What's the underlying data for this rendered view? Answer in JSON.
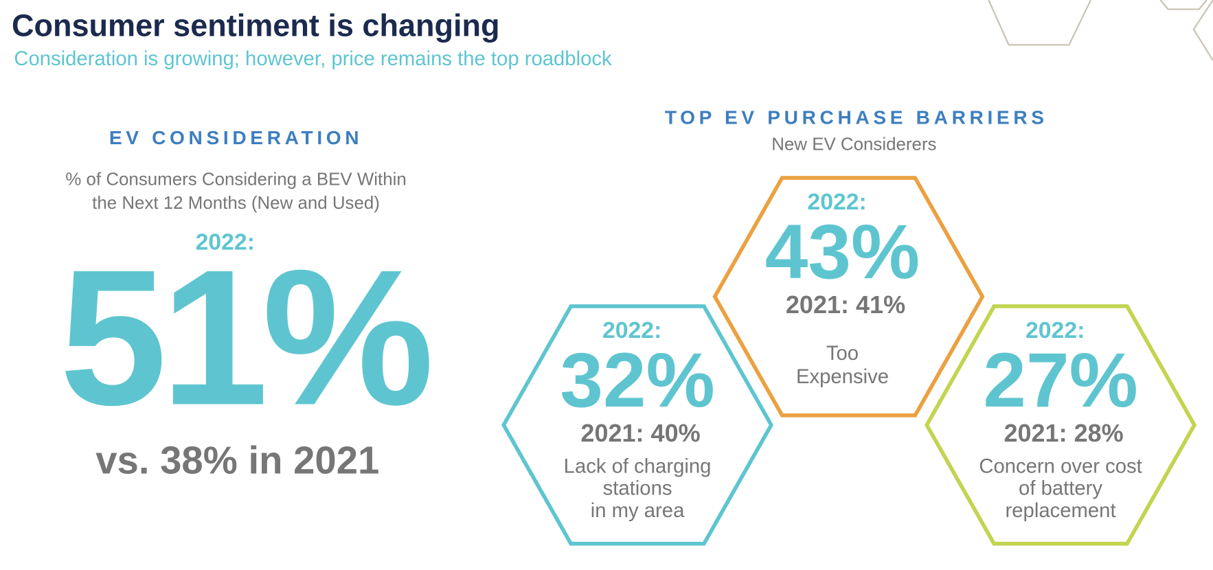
{
  "header": {
    "title": "Consumer sentiment is changing",
    "subtitle": "Consideration is growing; however, price remains the top roadblock"
  },
  "consideration": {
    "heading": "EV CONSIDERATION",
    "description": [
      "% of Consumers Considering a BEV Within",
      "the Next 12 Months (New and Used)"
    ],
    "year_label": "2022:",
    "value": "51%",
    "comparison": "vs. 38% in 2021"
  },
  "barriers": {
    "heading": "TOP EV PURCHASE BARRIERS",
    "subheading": "New EV Considerers",
    "items": [
      {
        "year_label": "2022:",
        "value": "43%",
        "previous": "2021: 41%",
        "label": [
          "Too",
          "Expensive"
        ]
      },
      {
        "year_label": "2022:",
        "value": "32%",
        "previous": "2021: 40%",
        "label": [
          "Lack of charging",
          "stations",
          "in my area"
        ]
      },
      {
        "year_label": "2022:",
        "value": "27%",
        "previous": "2021: 28%",
        "label": [
          "Concern over cost",
          "of battery",
          "replacement"
        ]
      }
    ]
  }
}
